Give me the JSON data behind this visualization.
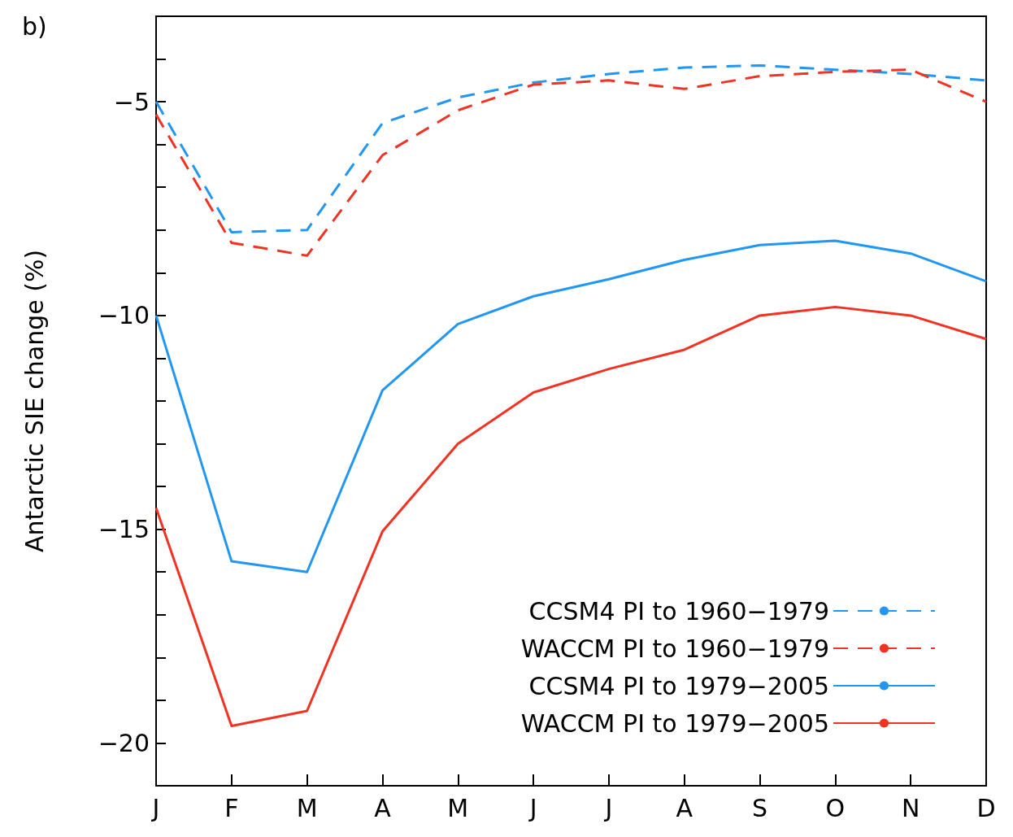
{
  "chart_data": {
    "type": "line",
    "ylabel": "Antarctic SIE change (%)",
    "annotations": [
      "b)"
    ],
    "categories": [
      "J",
      "F",
      "M",
      "A",
      "M",
      "J",
      "J",
      "A",
      "S",
      "O",
      "N",
      "D"
    ],
    "ylim": [
      -21,
      -3
    ],
    "yticks": [
      {
        "value": -21,
        "label": null
      },
      -20,
      {
        "value": -19,
        "label": null
      },
      {
        "value": -18,
        "label": null
      },
      {
        "value": -17,
        "label": null
      },
      {
        "value": -16,
        "label": null
      },
      -15,
      {
        "value": -14,
        "label": null
      },
      {
        "value": -13,
        "label": null
      },
      {
        "value": -12,
        "label": null
      },
      {
        "value": -11,
        "label": null
      },
      -10,
      {
        "value": -9,
        "label": null
      },
      {
        "value": -8,
        "label": null
      },
      {
        "value": -7,
        "label": null
      },
      {
        "value": -6,
        "label": null
      },
      -5,
      {
        "value": -4,
        "label": null
      },
      {
        "value": -3,
        "label": null
      }
    ],
    "grid": false,
    "legend": "bottom right",
    "marker": "none",
    "series": [
      {
        "name": "CCSM4 PI to 1960−1979",
        "color": "#2196f3",
        "line_style": "dashed",
        "values": [
          -5.0,
          -8.05,
          -8.0,
          -5.5,
          -4.9,
          -4.55,
          -4.35,
          -4.2,
          -4.15,
          -4.25,
          -4.35,
          -4.5
        ]
      },
      {
        "name": "WACCM PI to 1960−1979",
        "color": "#f03323",
        "line_style": "dashed",
        "values": [
          -5.3,
          -8.3,
          -8.6,
          -6.25,
          -5.2,
          -4.6,
          -4.5,
          -4.7,
          -4.4,
          -4.3,
          -4.25,
          -5.0
        ]
      },
      {
        "name": "CCSM4 PI to 1979−2005",
        "color": "#2196f3",
        "line_style": "solid",
        "values": [
          -10.0,
          -15.75,
          -16.0,
          -11.75,
          -10.2,
          -9.55,
          -9.15,
          -8.7,
          -8.35,
          -8.25,
          -8.55,
          -9.2
        ]
      },
      {
        "name": "WACCM PI to 1979−2005",
        "color": "#f03323",
        "line_style": "solid",
        "values": [
          -14.5,
          -19.6,
          -19.25,
          -15.05,
          -13.0,
          -11.8,
          -11.25,
          -10.8,
          -10.0,
          -9.8,
          -10.0,
          -10.55
        ]
      }
    ]
  }
}
